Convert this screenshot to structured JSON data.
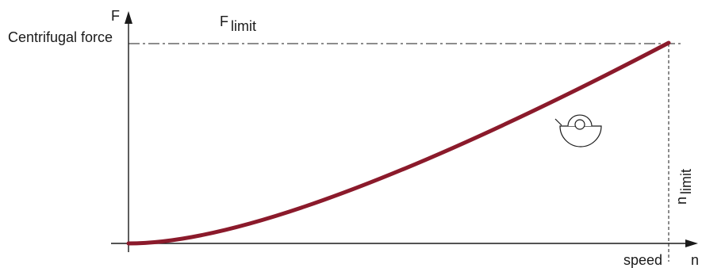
{
  "y_axis": {
    "symbol": "F",
    "label": "Centrifugal force"
  },
  "x_axis": {
    "symbol": "n",
    "label": "speed"
  },
  "force_limit": {
    "symbol": "F",
    "subscript": "limit"
  },
  "speed_limit": {
    "symbol": "n",
    "subscript": "limit"
  },
  "curve": {
    "shape": "quadratic",
    "color": "#8b1a2b"
  },
  "icon": "governor-flyweight-icon"
}
